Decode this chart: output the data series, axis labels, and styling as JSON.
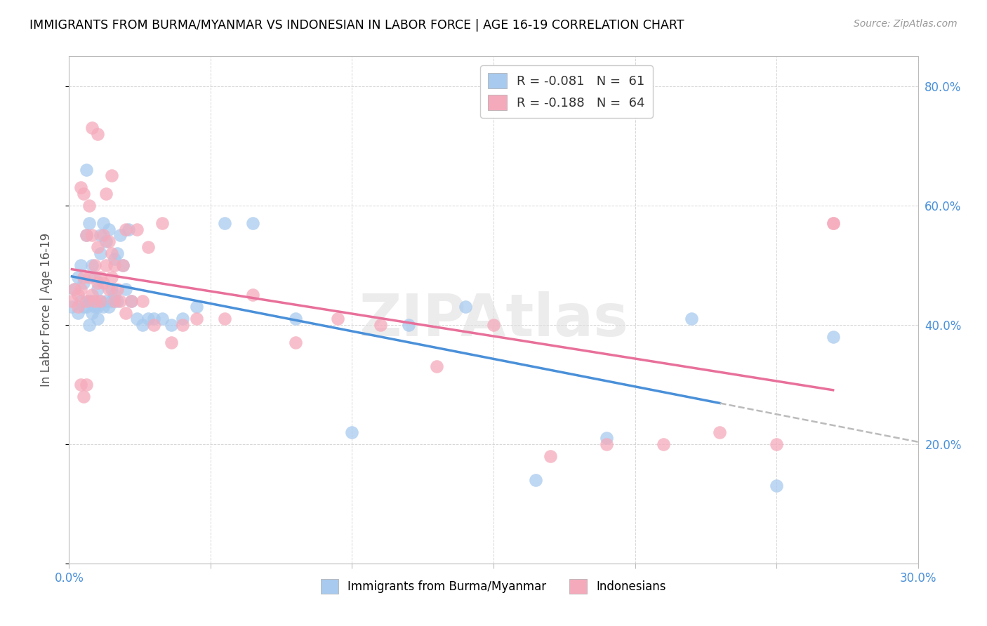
{
  "title": "IMMIGRANTS FROM BURMA/MYANMAR VS INDONESIAN IN LABOR FORCE | AGE 16-19 CORRELATION CHART",
  "source": "Source: ZipAtlas.com",
  "ylabel": "In Labor Force | Age 16-19",
  "xlim": [
    0.0,
    0.3
  ],
  "ylim": [
    0.0,
    0.85
  ],
  "x_ticks": [
    0.0,
    0.05,
    0.1,
    0.15,
    0.2,
    0.25,
    0.3
  ],
  "y_ticks": [
    0.0,
    0.2,
    0.4,
    0.6,
    0.8
  ],
  "y_tick_labels": [
    "",
    "20.0%",
    "40.0%",
    "60.0%",
    "80.0%"
  ],
  "legend1_label": "R = -0.081   N =  61",
  "legend2_label": "R = -0.188   N =  64",
  "color_blue": "#A8CAEE",
  "color_pink": "#F5AABB",
  "color_blue_line": "#4A90D9",
  "color_pink_line": "#E8709A",
  "watermark": "ZIPAtlas",
  "blue_x": [
    0.001,
    0.002,
    0.003,
    0.003,
    0.004,
    0.004,
    0.005,
    0.005,
    0.006,
    0.006,
    0.006,
    0.007,
    0.007,
    0.007,
    0.008,
    0.008,
    0.008,
    0.009,
    0.009,
    0.01,
    0.01,
    0.01,
    0.011,
    0.011,
    0.011,
    0.012,
    0.012,
    0.013,
    0.013,
    0.014,
    0.014,
    0.015,
    0.015,
    0.016,
    0.016,
    0.017,
    0.017,
    0.018,
    0.019,
    0.02,
    0.021,
    0.022,
    0.024,
    0.026,
    0.028,
    0.03,
    0.033,
    0.036,
    0.04,
    0.045,
    0.055,
    0.065,
    0.08,
    0.1,
    0.12,
    0.14,
    0.165,
    0.19,
    0.22,
    0.25,
    0.27
  ],
  "blue_y": [
    0.43,
    0.46,
    0.42,
    0.48,
    0.44,
    0.5,
    0.43,
    0.47,
    0.66,
    0.55,
    0.43,
    0.57,
    0.44,
    0.4,
    0.44,
    0.5,
    0.42,
    0.43,
    0.48,
    0.46,
    0.43,
    0.41,
    0.55,
    0.44,
    0.52,
    0.43,
    0.57,
    0.44,
    0.54,
    0.43,
    0.56,
    0.46,
    0.44,
    0.51,
    0.45,
    0.52,
    0.44,
    0.55,
    0.5,
    0.46,
    0.56,
    0.44,
    0.41,
    0.4,
    0.41,
    0.41,
    0.41,
    0.4,
    0.41,
    0.43,
    0.57,
    0.57,
    0.41,
    0.22,
    0.4,
    0.43,
    0.14,
    0.21,
    0.41,
    0.13,
    0.38
  ],
  "pink_x": [
    0.001,
    0.002,
    0.003,
    0.004,
    0.004,
    0.005,
    0.005,
    0.006,
    0.006,
    0.007,
    0.007,
    0.008,
    0.008,
    0.009,
    0.009,
    0.01,
    0.01,
    0.011,
    0.011,
    0.012,
    0.012,
    0.013,
    0.013,
    0.014,
    0.014,
    0.015,
    0.015,
    0.016,
    0.016,
    0.017,
    0.018,
    0.019,
    0.02,
    0.022,
    0.024,
    0.026,
    0.028,
    0.03,
    0.033,
    0.036,
    0.04,
    0.045,
    0.055,
    0.065,
    0.08,
    0.095,
    0.11,
    0.13,
    0.15,
    0.17,
    0.19,
    0.21,
    0.23,
    0.25,
    0.27,
    0.02,
    0.015,
    0.01,
    0.008,
    0.006,
    0.005,
    0.004,
    0.003,
    0.27
  ],
  "pink_y": [
    0.44,
    0.46,
    0.43,
    0.63,
    0.46,
    0.62,
    0.48,
    0.55,
    0.44,
    0.6,
    0.48,
    0.55,
    0.45,
    0.5,
    0.44,
    0.53,
    0.47,
    0.48,
    0.44,
    0.55,
    0.47,
    0.5,
    0.62,
    0.46,
    0.54,
    0.48,
    0.52,
    0.44,
    0.5,
    0.46,
    0.44,
    0.5,
    0.42,
    0.44,
    0.56,
    0.44,
    0.53,
    0.4,
    0.57,
    0.37,
    0.4,
    0.41,
    0.41,
    0.45,
    0.37,
    0.41,
    0.4,
    0.33,
    0.4,
    0.18,
    0.2,
    0.2,
    0.22,
    0.2,
    0.57,
    0.56,
    0.65,
    0.72,
    0.73,
    0.3,
    0.28,
    0.3,
    0.45,
    0.57
  ]
}
